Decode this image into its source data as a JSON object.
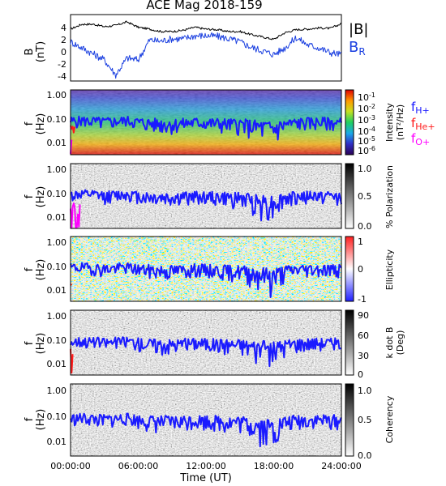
{
  "title": "ACE Mag 2018-159",
  "colors": {
    "B_total": "#000000",
    "B_R": "#1a3fe0",
    "f_H": "#1a1aff",
    "f_He": "#ff1a1a",
    "f_O": "#ff00ff",
    "spectrogram_palette": "rainbow (purple-blue-green-yellow-red)"
  },
  "chart_data": [
    {
      "type": "line",
      "panel": "magnetic-field",
      "ylabel": "B",
      "yunit": "(nT)",
      "ylim": [
        -5,
        6
      ],
      "yticks": [
        "4",
        "2",
        "0",
        "-2",
        "-4"
      ],
      "xlim": [
        0,
        24
      ],
      "legend_placement": "right",
      "series": [
        {
          "name": "|B|",
          "color": "#000000",
          "x": [
            0,
            1,
            2,
            3,
            4,
            5,
            6,
            7,
            8,
            9,
            10,
            11,
            12,
            13,
            14,
            15,
            16,
            17,
            18,
            19,
            20,
            21,
            22,
            23,
            24
          ],
          "values": [
            3.6,
            4.4,
            4.4,
            4.0,
            4.2,
            4.8,
            3.9,
            3.6,
            3.2,
            3.2,
            3.4,
            3.9,
            3.6,
            3.5,
            3.2,
            3.2,
            2.7,
            2.3,
            1.9,
            3.0,
            3.5,
            3.6,
            3.8,
            3.7,
            4.5
          ]
        },
        {
          "name": "B",
          "subscript": "R",
          "color": "#1a3fe0",
          "x": [
            0,
            1,
            2,
            3,
            4,
            5,
            6,
            7,
            8,
            9,
            10,
            11,
            12,
            13,
            14,
            15,
            16,
            17,
            18,
            19,
            20,
            21,
            22,
            23,
            24
          ],
          "values": [
            1.5,
            0.5,
            -0.5,
            -1.5,
            -4.0,
            -1.2,
            -1.5,
            1.8,
            1.6,
            2.0,
            2.0,
            2.5,
            2.5,
            2.4,
            2.0,
            1.5,
            0.6,
            0.0,
            -0.6,
            0.5,
            2.2,
            1.0,
            0.5,
            -0.3,
            -0.6
          ]
        }
      ]
    },
    {
      "type": "heatmap",
      "panel": "power-spectral-density",
      "ylabel": "f",
      "yunit": "(Hz)",
      "yscale": "log",
      "ylim": [
        0.003,
        1.0
      ],
      "yticks": [
        "1.00",
        "0.10",
        "0.01"
      ],
      "colorbar_label": "Intensity",
      "colorbar_unit": "(nT²/Hz)",
      "colorbar_ticks": [
        "10",
        "10",
        "10",
        "10",
        "10",
        "10"
      ],
      "colorbar_exponents": [
        "-1",
        "-2",
        "-3",
        "-4",
        "-5",
        "-6"
      ],
      "legend": [
        {
          "name": "f",
          "subscript": "H+",
          "color": "#1a1aff"
        },
        {
          "name": "f",
          "subscript": "He+",
          "color": "#ff1a1a"
        },
        {
          "name": "f",
          "subscript": "O+",
          "color": "#ff00ff"
        }
      ]
    },
    {
      "type": "heatmap",
      "panel": "polarization",
      "ylabel": "f",
      "yunit": "(Hz)",
      "yscale": "log",
      "ylim": [
        0.003,
        1.0
      ],
      "yticks": [
        "1.00",
        "0.10",
        "0.01"
      ],
      "colorbar_label": "% Polarization",
      "colorbar_ticks": [
        "1.0",
        "0.5",
        "0.0"
      ]
    },
    {
      "type": "heatmap",
      "panel": "ellipticity",
      "ylabel": "f",
      "yunit": "(Hz)",
      "yscale": "log",
      "ylim": [
        0.003,
        1.0
      ],
      "yticks": [
        "1.00",
        "0.10",
        "0.01"
      ],
      "colorbar_label": "Ellipticity",
      "colorbar_ticks": [
        "1",
        "0",
        "-1"
      ]
    },
    {
      "type": "heatmap",
      "panel": "wave-normal-angle",
      "ylabel": "f",
      "yunit": "(Hz)",
      "yscale": "log",
      "ylim": [
        0.003,
        1.0
      ],
      "yticks": [
        "1.00",
        "0.10",
        "0.01"
      ],
      "colorbar_label": "k dot B",
      "colorbar_unit": "(Deg)",
      "colorbar_ticks": [
        "90",
        "60",
        "30",
        "0"
      ]
    },
    {
      "type": "heatmap",
      "panel": "coherency",
      "ylabel": "f",
      "yunit": "(Hz)",
      "yscale": "log",
      "ylim": [
        0.003,
        1.0
      ],
      "yticks": [
        "1.00",
        "0.10",
        "0.01"
      ],
      "colorbar_label": "Coherency",
      "colorbar_ticks": [
        "1.0",
        "0.5",
        "0.0"
      ]
    }
  ],
  "gyrofrequency_hz": {
    "x": [
      0,
      1,
      2,
      3,
      4,
      5,
      6,
      7,
      8,
      9,
      10,
      11,
      12,
      13,
      14,
      15,
      16,
      17,
      18,
      19,
      20,
      21,
      22,
      23,
      24
    ],
    "f_H": [
      0.06,
      0.065,
      0.06,
      0.055,
      0.06,
      0.065,
      0.055,
      0.05,
      0.048,
      0.047,
      0.05,
      0.055,
      0.053,
      0.05,
      0.047,
      0.047,
      0.04,
      0.035,
      0.03,
      0.045,
      0.052,
      0.055,
      0.056,
      0.055,
      0.05
    ],
    "f_He": [
      0.015,
      0.016,
      0.016,
      0.014,
      0.015,
      0.017,
      0.014,
      0.013,
      0.012,
      0.012,
      0.013,
      0.014,
      0.013,
      0.013,
      0.012,
      0.012,
      0.01,
      0.009,
      0.008,
      0.011,
      0.013,
      0.014,
      0.014,
      0.014,
      0.013
    ],
    "f_O": [
      0.004,
      0.0042,
      0.004,
      0.0037,
      0.004,
      0.0043,
      0.0037,
      0.0034,
      0.0032,
      0.0032,
      0.0034,
      0.0037,
      0.0035,
      0.0034,
      0.0032,
      0.0032,
      0.0028,
      0.0025,
      0.0022,
      0.003,
      0.0035,
      0.0037,
      0.0037,
      0.0037,
      0.0035
    ]
  },
  "x_axis": {
    "label": "Time (UT)",
    "ticks": [
      "00:00:00",
      "06:00:00",
      "12:00:00",
      "18:00:00",
      "24:00:00"
    ],
    "tick_values": [
      0,
      6,
      12,
      18,
      24
    ]
  }
}
